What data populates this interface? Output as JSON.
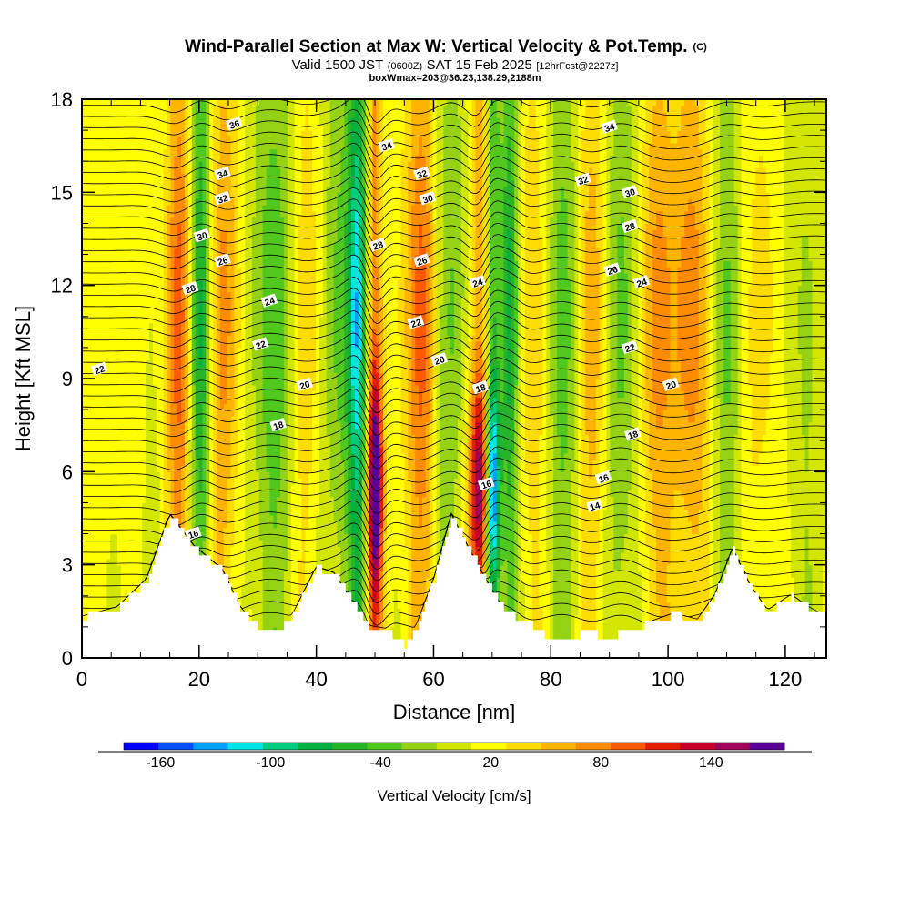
{
  "title": {
    "main": "Wind-Parallel Section at Max W: Vertical Velocity & Pot.Temp.",
    "mark": "(C)",
    "sub_valid": "Valid 1500 JST",
    "sub_z": "(0600Z)",
    "sub_date": "SAT 15 Feb 2025",
    "sub_fcst": "[12hrFcst@2227z]",
    "sub2": "boxWmax=203@36.23,138.29,2188m"
  },
  "chart_data": {
    "type": "heatmap",
    "xlabel": "Distance [nm]",
    "ylabel": "Height [Kft MSL]",
    "xlim": [
      0,
      127
    ],
    "ylim": [
      0,
      18
    ],
    "x_ticks": [
      0,
      20,
      40,
      60,
      80,
      100,
      120
    ],
    "y_ticks": [
      0,
      3,
      6,
      9,
      12,
      15,
      18
    ],
    "colorbar": {
      "label": "Vertical Velocity [cm/s]",
      "ticks": [
        -160,
        -100,
        -40,
        20,
        80,
        140
      ],
      "min": -180,
      "max": 180,
      "colors": [
        "#0000ff",
        "#0050ff",
        "#00a0ff",
        "#00e6e6",
        "#00cc80",
        "#00b040",
        "#28b428",
        "#50c81e",
        "#96d214",
        "#d2e600",
        "#ffff00",
        "#ffdc00",
        "#ffb400",
        "#ff8c00",
        "#ff5a00",
        "#e61e00",
        "#c80028",
        "#a0005a",
        "#5a0096"
      ]
    },
    "velocity_features": [
      {
        "x": 3,
        "value": 15,
        "width": 6
      },
      {
        "x": 17,
        "value": 100,
        "width": 2.5
      },
      {
        "x": 20,
        "value": -110,
        "width": 2.2
      },
      {
        "x": 24,
        "value": 70,
        "width": 3
      },
      {
        "x": 33,
        "value": -55,
        "width": 4
      },
      {
        "x": 38,
        "value": 45,
        "width": 3
      },
      {
        "x": 44,
        "value": -45,
        "width": 3
      },
      {
        "x": 47,
        "value": -115,
        "width": 1.6
      },
      {
        "x": 50,
        "value": 175,
        "width": 1.3
      },
      {
        "x": 55,
        "value": 15,
        "width": 4
      },
      {
        "x": 58,
        "value": 80,
        "width": 2.5
      },
      {
        "x": 63,
        "value": -40,
        "width": 3
      },
      {
        "x": 68,
        "value": 150,
        "width": 2
      },
      {
        "x": 70,
        "value": -175,
        "width": 1.3
      },
      {
        "x": 73,
        "value": -90,
        "width": 1.5
      },
      {
        "x": 77,
        "value": 40,
        "width": 3
      },
      {
        "x": 82,
        "value": -50,
        "width": 3
      },
      {
        "x": 87,
        "value": 60,
        "width": 2.5
      },
      {
        "x": 92,
        "value": -45,
        "width": 3
      },
      {
        "x": 98,
        "value": 65,
        "width": 3
      },
      {
        "x": 104,
        "value": 70,
        "width": 3.5
      },
      {
        "x": 110,
        "value": -45,
        "width": 2.5
      },
      {
        "x": 116,
        "value": 30,
        "width": 4
      },
      {
        "x": 123,
        "value": -20,
        "width": 4
      }
    ],
    "terrain": [
      {
        "x": 0,
        "h": 1.3
      },
      {
        "x": 6,
        "h": 1.6
      },
      {
        "x": 11,
        "h": 2.5
      },
      {
        "x": 15,
        "h": 4.6
      },
      {
        "x": 19,
        "h": 3.6
      },
      {
        "x": 24,
        "h": 2.8
      },
      {
        "x": 27,
        "h": 1.6
      },
      {
        "x": 30,
        "h": 1.0
      },
      {
        "x": 33,
        "h": 0.8
      },
      {
        "x": 36,
        "h": 1.4
      },
      {
        "x": 40,
        "h": 2.9
      },
      {
        "x": 43,
        "h": 2.7
      },
      {
        "x": 46,
        "h": 1.8
      },
      {
        "x": 49,
        "h": 1.0
      },
      {
        "x": 52,
        "h": 0.9
      },
      {
        "x": 55,
        "h": 0.4
      },
      {
        "x": 57,
        "h": 1.0
      },
      {
        "x": 60,
        "h": 2.5
      },
      {
        "x": 63,
        "h": 4.6
      },
      {
        "x": 66,
        "h": 3.5
      },
      {
        "x": 68,
        "h": 2.8
      },
      {
        "x": 71,
        "h": 1.8
      },
      {
        "x": 74,
        "h": 1.3
      },
      {
        "x": 77,
        "h": 1.0
      },
      {
        "x": 80,
        "h": 0.6
      },
      {
        "x": 83,
        "h": 0.5
      },
      {
        "x": 86,
        "h": 0.9
      },
      {
        "x": 89,
        "h": 0.6
      },
      {
        "x": 92,
        "h": 0.8
      },
      {
        "x": 95,
        "h": 1.0
      },
      {
        "x": 98,
        "h": 1.2
      },
      {
        "x": 101,
        "h": 1.4
      },
      {
        "x": 105,
        "h": 1.2
      },
      {
        "x": 108,
        "h": 2.0
      },
      {
        "x": 111,
        "h": 3.5
      },
      {
        "x": 114,
        "h": 2.3
      },
      {
        "x": 117,
        "h": 1.5
      },
      {
        "x": 121,
        "h": 2.0
      },
      {
        "x": 124,
        "h": 1.6
      },
      {
        "x": 127,
        "h": 1.3
      }
    ],
    "contour_levels": [
      14,
      16,
      18,
      20,
      22,
      24,
      26,
      28,
      30,
      32,
      34,
      36
    ],
    "contour_labels": [
      {
        "text": "36",
        "x": 26,
        "y": 17.2
      },
      {
        "text": "34",
        "x": 24,
        "y": 15.6
      },
      {
        "text": "32",
        "x": 24,
        "y": 14.8
      },
      {
        "text": "30",
        "x": 20.5,
        "y": 13.6
      },
      {
        "text": "26",
        "x": 24,
        "y": 12.8
      },
      {
        "text": "28",
        "x": 18.5,
        "y": 11.9
      },
      {
        "text": "24",
        "x": 32,
        "y": 11.5
      },
      {
        "text": "22",
        "x": 30.5,
        "y": 10.1
      },
      {
        "text": "22",
        "x": 3,
        "y": 9.3
      },
      {
        "text": "20",
        "x": 38,
        "y": 8.8
      },
      {
        "text": "18",
        "x": 33.5,
        "y": 7.5
      },
      {
        "text": "16",
        "x": 19,
        "y": 4.0
      },
      {
        "text": "34",
        "x": 52,
        "y": 16.5
      },
      {
        "text": "32",
        "x": 58,
        "y": 15.6
      },
      {
        "text": "30",
        "x": 59,
        "y": 14.8
      },
      {
        "text": "28",
        "x": 50.5,
        "y": 13.3
      },
      {
        "text": "26",
        "x": 58,
        "y": 12.8
      },
      {
        "text": "24",
        "x": 67.5,
        "y": 12.1
      },
      {
        "text": "22",
        "x": 57,
        "y": 10.8
      },
      {
        "text": "20",
        "x": 61,
        "y": 9.6
      },
      {
        "text": "18",
        "x": 68,
        "y": 8.7
      },
      {
        "text": "16",
        "x": 69,
        "y": 5.6
      },
      {
        "text": "34",
        "x": 90,
        "y": 17.1
      },
      {
        "text": "32",
        "x": 85.5,
        "y": 15.4
      },
      {
        "text": "30",
        "x": 93.5,
        "y": 15.0
      },
      {
        "text": "28",
        "x": 93.5,
        "y": 13.9
      },
      {
        "text": "26",
        "x": 90.5,
        "y": 12.5
      },
      {
        "text": "24",
        "x": 95.5,
        "y": 12.1
      },
      {
        "text": "22",
        "x": 93.5,
        "y": 10.0
      },
      {
        "text": "20",
        "x": 100.5,
        "y": 8.8
      },
      {
        "text": "18",
        "x": 94,
        "y": 7.2
      },
      {
        "text": "16",
        "x": 89,
        "y": 5.8
      },
      {
        "text": "14",
        "x": 87.5,
        "y": 4.9
      }
    ]
  }
}
